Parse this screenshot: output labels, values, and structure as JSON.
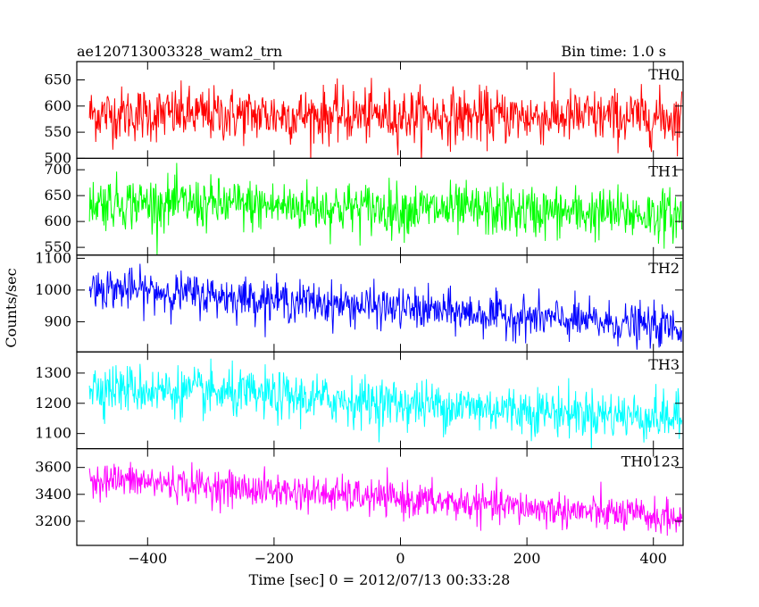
{
  "chart_data": {
    "type": "line",
    "title": "ae120713003328_wam2_trn",
    "subtitle": "Bin time: 1.0 s",
    "xlabel": "Time [sec] 0 = 2012/07/13 00:33:28",
    "ylabel": "Counts/sec",
    "xlim": [
      -512,
      447
    ],
    "x_ticks": [
      -400,
      -200,
      0,
      200,
      400
    ],
    "x_tick_labels": [
      "−400",
      "−200",
      "0",
      "200",
      "400"
    ],
    "grid": false,
    "panels": [
      {
        "name": "TH0",
        "color": "#ff0000",
        "ylim": [
          500,
          685
        ],
        "y_ticks": [
          500,
          550,
          600,
          650
        ],
        "x_start": -492,
        "x_end": 445,
        "mean_start": 585,
        "mean_end": 578,
        "noise_sd": 26
      },
      {
        "name": "TH1",
        "color": "#00ff00",
        "ylim": [
          535,
          722
        ],
        "y_ticks": [
          550,
          600,
          650,
          700
        ],
        "x_start": -492,
        "x_end": 445,
        "mean_start": 638,
        "mean_end": 612,
        "noise_sd": 25
      },
      {
        "name": "TH2",
        "color": "#0000ff",
        "ylim": [
          805,
          1110
        ],
        "y_ticks": [
          900,
          1000,
          1100
        ],
        "x_start": -492,
        "x_end": 445,
        "mean_start": 1010,
        "mean_end": 880,
        "noise_sd": 32
      },
      {
        "name": "TH3",
        "color": "#00ffff",
        "ylim": [
          1050,
          1370
        ],
        "y_ticks": [
          1100,
          1200,
          1300
        ],
        "x_start": -492,
        "x_end": 445,
        "mean_start": 1255,
        "mean_end": 1150,
        "noise_sd": 40
      },
      {
        "name": "TH0123",
        "color": "#ff00ff",
        "ylim": [
          3020,
          3740
        ],
        "y_ticks": [
          3200,
          3400,
          3600
        ],
        "x_start": -492,
        "x_end": 445,
        "mean_start": 3520,
        "mean_end": 3220,
        "noise_sd": 65
      }
    ]
  }
}
